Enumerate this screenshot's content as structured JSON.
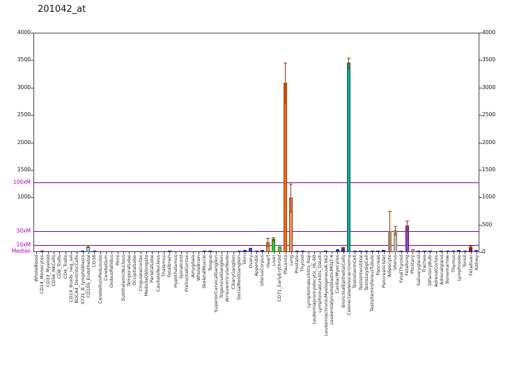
{
  "chart_data": {
    "type": "bar",
    "title": "201042_at",
    "ylim": [
      0,
      4000
    ],
    "grid": false,
    "legend": false,
    "left_ticks": [
      4000,
      3500,
      3000,
      2500,
      2000,
      1500,
      1000
    ],
    "right_ticks": [
      4000,
      3500,
      3000,
      2500,
      2000,
      1500,
      1000,
      500,
      0
    ],
    "ref_line_color": "#7D007D",
    "ref_label_color": "#B000B0",
    "error_bar_color": "#993300",
    "default_bar_color": "#2B2B8C",
    "axis_color": "#444444",
    "ref_lines": [
      {
        "label": "100xM",
        "value": 1270
      },
      {
        "label": "30xM",
        "value": 381
      },
      {
        "label": "10xM",
        "value": 127
      },
      {
        "label": "Median",
        "value": 13
      }
    ],
    "bars": [
      {
        "label": "WholeBlood",
        "value": 18
      },
      {
        "label": "CD14_Monocytes",
        "value": 22
      },
      {
        "label": "CD33_Myeloid",
        "value": 18
      },
      {
        "label": "CD56_NKCells",
        "value": 14
      },
      {
        "label": "CD8_Tcells",
        "value": 10
      },
      {
        "label": "CD4_Tcells",
        "value": 12
      },
      {
        "label": "CD19_Bcells_neg_sel",
        "value": 14
      },
      {
        "label": "BDCA4_DentriticCells",
        "value": 18
      },
      {
        "label": "X721_B_lymphoblasts",
        "value": 22
      },
      {
        "label": "CD105_Endothelial",
        "value": 105,
        "color": "#9BDDE8",
        "border": "#20707C",
        "err": 18
      },
      {
        "label": "CD34",
        "value": 24
      },
      {
        "label": "CerebellumPeduncles",
        "value": 10
      },
      {
        "label": "Cerebellum",
        "value": 16
      },
      {
        "label": "GlobusPallidus",
        "value": 8
      },
      {
        "label": "Pons",
        "value": 10
      },
      {
        "label": "SubthalamicNucleus",
        "value": 8
      },
      {
        "label": "TemporalLobe",
        "value": 10
      },
      {
        "label": "OccipitalLobe",
        "value": 12
      },
      {
        "label": "CingulateCortex",
        "value": 10
      },
      {
        "label": "MedullaOblongata",
        "value": 12
      },
      {
        "label": "ParietalLobe",
        "value": 10
      },
      {
        "label": "CaudateNucleus",
        "value": 8
      },
      {
        "label": "Thalamus",
        "value": 10
      },
      {
        "label": "Fetalbrain",
        "value": 20
      },
      {
        "label": "Hypothalamus",
        "value": 12
      },
      {
        "label": "Spinalcord",
        "value": 16
      },
      {
        "label": "PrefrontalCortex",
        "value": 10
      },
      {
        "label": "Amygdala",
        "value": 8
      },
      {
        "label": "WholeBrain",
        "value": 10
      },
      {
        "label": "SkeletalMuscle",
        "value": 26
      },
      {
        "label": "Tongue",
        "value": 20
      },
      {
        "label": "SuperiorCervicalGanglion",
        "value": 16
      },
      {
        "label": "TrigeminalGanglion",
        "value": 14
      },
      {
        "label": "AtrioventricularNode",
        "value": 16
      },
      {
        "label": "CiliaryGanglion",
        "value": 12
      },
      {
        "label": "DorsalRootGanglion",
        "value": 20
      },
      {
        "label": "Skin",
        "value": 34
      },
      {
        "label": "Ovary",
        "value": 78,
        "color": "#3A3AB8"
      },
      {
        "label": "Appendix",
        "value": 26
      },
      {
        "label": "UterusCorpus",
        "value": 34
      },
      {
        "label": "Heart",
        "value": 182,
        "color": "#D89F5E",
        "border": "#8A5013",
        "err": 68
      },
      {
        "label": "Liver",
        "value": 242,
        "color": "#33CC33",
        "border": "#1E7A1E",
        "err": 22
      },
      {
        "label": "CD71_EarlyErythroid",
        "value": 96,
        "color": "#63BE4F",
        "border": "#2F6B2F"
      },
      {
        "label": "Placenta",
        "value": 3088,
        "color": "#E8731E",
        "border": "#993300",
        "err": 362
      },
      {
        "label": "Lung",
        "value": 992,
        "color": "#F09A66",
        "border": "#993300",
        "err": 258
      },
      {
        "label": "Prostate",
        "value": 30
      },
      {
        "label": "Thyroid",
        "value": 26
      },
      {
        "label": "Lymphomaburkitts_Raji",
        "value": 14
      },
      {
        "label": "Leukemiapromyelocytic_HL-60",
        "value": 12
      },
      {
        "label": "Lymphomaburkitts_Daudi",
        "value": 16
      },
      {
        "label": "LeukemiachronicMyelogenousK-562",
        "value": 20
      },
      {
        "label": "LeukemialymphoblasticMOLT-4",
        "value": 14
      },
      {
        "label": "CardiacMyocytes",
        "value": 46,
        "color": "#2D2D9E"
      },
      {
        "label": "BronchialEpithelialCells",
        "value": 72,
        "color": "#23238F",
        "err": 14
      },
      {
        "label": "Colorectaladenocarcinoma",
        "value": 3452,
        "color": "#18A79E",
        "border": "#0C615B",
        "err": 96
      },
      {
        "label": "TestisGermCell",
        "value": 22
      },
      {
        "label": "TestisInterstitial",
        "value": 26
      },
      {
        "label": "TestisLeydigCell",
        "value": 20
      },
      {
        "label": "TestisSeminiferousTubule",
        "value": 26
      },
      {
        "label": "Pancreas",
        "value": 20
      },
      {
        "label": "PancreaticIslet",
        "value": 32
      },
      {
        "label": "Adipocyte",
        "value": 382,
        "color": "#CDBA94",
        "border": "#8A7550",
        "err": 368
      },
      {
        "label": "Uterus",
        "value": 396,
        "color": "#C2C3AC",
        "border": "#7E7F68",
        "err": 76
      },
      {
        "label": "FetalThyroid",
        "value": 30
      },
      {
        "label": "Fetallung",
        "value": 478,
        "color": "#8E44C8",
        "border": "#4A1E75",
        "err": 92
      },
      {
        "label": "Pituitary",
        "value": 46,
        "color": "#E39ABB",
        "border": "#A04A72"
      },
      {
        "label": "Salivarygland",
        "value": 24
      },
      {
        "label": "Trachea",
        "value": 30
      },
      {
        "label": "OlfactoryBulb",
        "value": 20
      },
      {
        "label": "AdrenalCortex",
        "value": 16
      },
      {
        "label": "Adrenalgland",
        "value": 22
      },
      {
        "label": "Bonemarrow",
        "value": 26
      },
      {
        "label": "Thymus",
        "value": 30
      },
      {
        "label": "Lymphnode",
        "value": 34
      },
      {
        "label": "Tonsil",
        "value": 30
      },
      {
        "label": "Fetalliver",
        "value": 92,
        "color": "#8B1A1A",
        "border": "#5A0E0E",
        "err": 16
      },
      {
        "label": "Kidney",
        "value": 36,
        "color": "#5B2FA0"
      }
    ]
  }
}
